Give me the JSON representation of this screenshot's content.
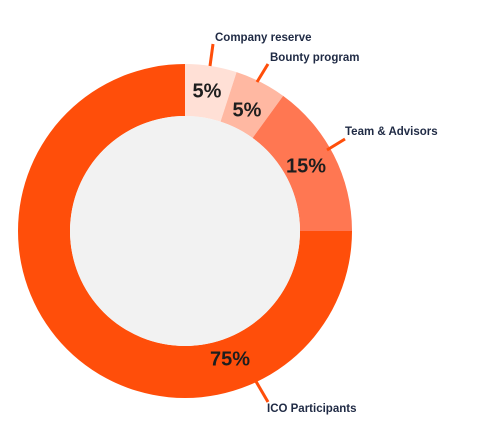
{
  "chart_data": {
    "type": "pie",
    "title": "",
    "labels": [
      "ICO Participants",
      "Team & Advisors",
      "Bounty program",
      "Company reserve"
    ],
    "values": [
      75,
      15,
      5,
      5
    ],
    "value_labels": [
      "75%",
      "15%",
      "5%",
      "5%"
    ],
    "colors": [
      "#ff4e0a",
      "#ff7752",
      "#ffb8a2",
      "#ffe0d6"
    ],
    "hole_color": "#f2f2f2",
    "leader_color": "#ff4e0a",
    "donut": true
  }
}
